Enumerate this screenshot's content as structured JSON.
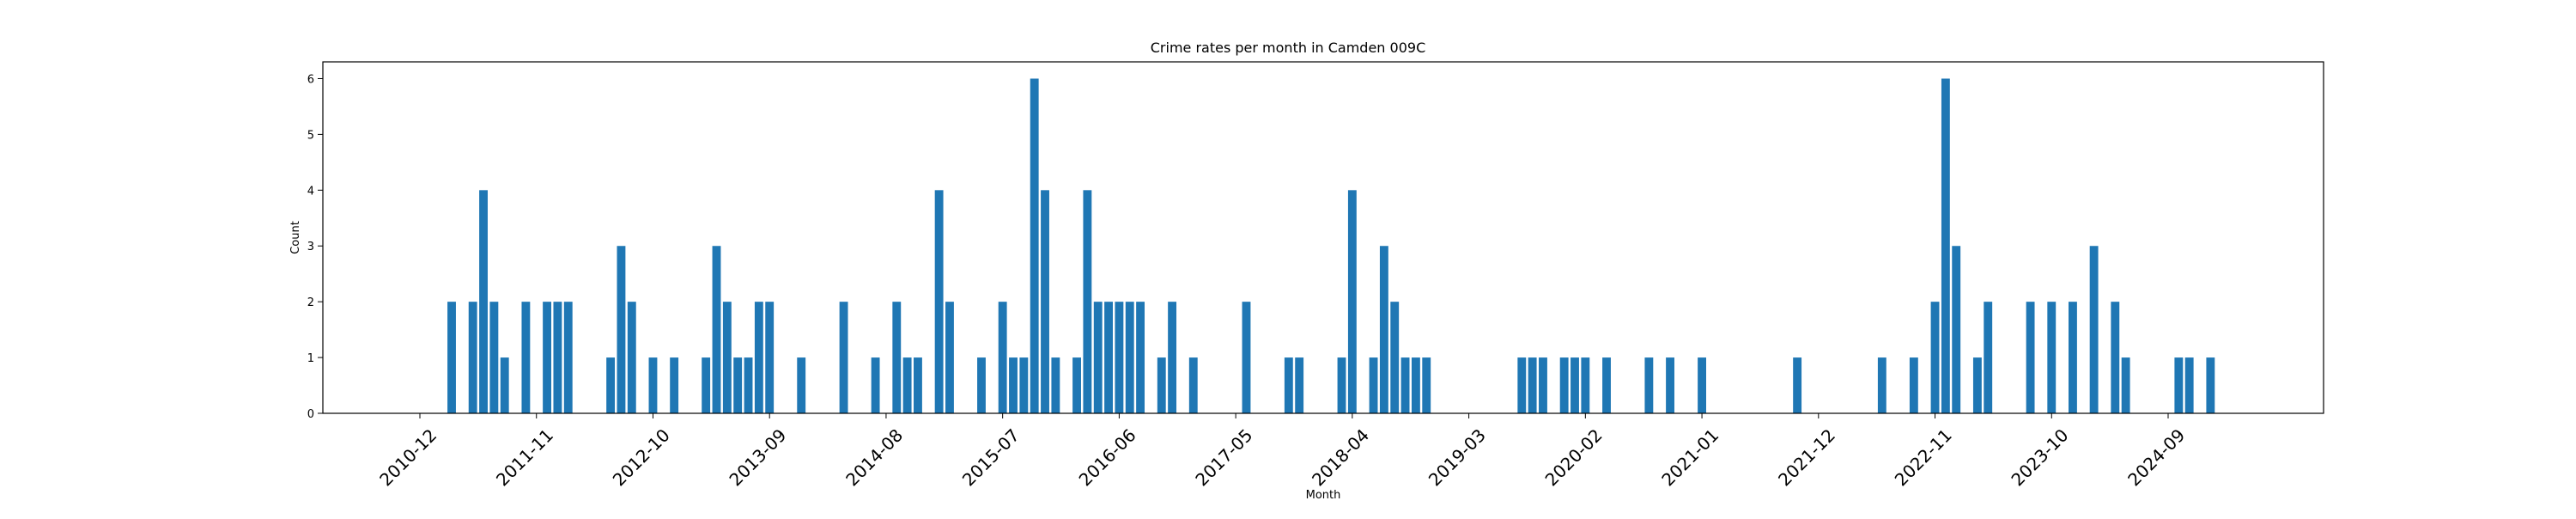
{
  "chart_data": {
    "type": "bar",
    "title": "Crime rates per month in Camden 009C",
    "xlabel": "Month",
    "ylabel": "Count",
    "ylim": [
      0,
      6.3
    ],
    "yticks": [
      0,
      1,
      2,
      3,
      4,
      5,
      6
    ],
    "xticks": [
      "2010-12",
      "2011-11",
      "2012-10",
      "2013-09",
      "2014-08",
      "2015-07",
      "2016-06",
      "2017-05",
      "2018-04",
      "2019-03",
      "2020-02",
      "2021-01",
      "2021-12",
      "2022-11",
      "2023-10",
      "2024-09"
    ],
    "bar_color": "#1f77b4",
    "grid": false,
    "categories": [
      "2011-03",
      "2011-05",
      "2011-06",
      "2011-07",
      "2011-08",
      "2011-10",
      "2011-12",
      "2012-01",
      "2012-02",
      "2012-06",
      "2012-07",
      "2012-08",
      "2012-10",
      "2012-12",
      "2013-03",
      "2013-04",
      "2013-05",
      "2013-06",
      "2013-07",
      "2013-08",
      "2013-09",
      "2013-12",
      "2014-04",
      "2014-07",
      "2014-09",
      "2014-10",
      "2014-11",
      "2015-01",
      "2015-02",
      "2015-05",
      "2015-07",
      "2015-08",
      "2015-09",
      "2015-10",
      "2015-11",
      "2015-12",
      "2016-02",
      "2016-03",
      "2016-04",
      "2016-05",
      "2016-06",
      "2016-07",
      "2016-08",
      "2016-10",
      "2016-11",
      "2017-01",
      "2017-06",
      "2017-10",
      "2017-11",
      "2018-03",
      "2018-04",
      "2018-06",
      "2018-07",
      "2018-08",
      "2018-09",
      "2018-10",
      "2018-11",
      "2019-08",
      "2019-09",
      "2019-10",
      "2019-12",
      "2020-01",
      "2020-02",
      "2020-04",
      "2020-08",
      "2020-10",
      "2021-01",
      "2021-10",
      "2022-06",
      "2022-09",
      "2022-11",
      "2022-12",
      "2023-01",
      "2023-03",
      "2023-04",
      "2023-08",
      "2023-10",
      "2023-12",
      "2024-02",
      "2024-04",
      "2024-05",
      "2024-10",
      "2024-11",
      "2025-01"
    ],
    "values": [
      2,
      2,
      4,
      2,
      1,
      2,
      2,
      2,
      2,
      1,
      3,
      2,
      1,
      1,
      1,
      3,
      2,
      1,
      1,
      2,
      2,
      1,
      2,
      1,
      2,
      1,
      1,
      4,
      2,
      1,
      2,
      1,
      1,
      6,
      4,
      1,
      1,
      4,
      2,
      2,
      2,
      2,
      2,
      1,
      2,
      1,
      2,
      1,
      1,
      1,
      4,
      1,
      3,
      2,
      1,
      1,
      1,
      1,
      1,
      1,
      1,
      1,
      1,
      1,
      1,
      1,
      1,
      1,
      1,
      1,
      2,
      6,
      3,
      1,
      2,
      2,
      2,
      2,
      3,
      2,
      1,
      1,
      1,
      1
    ]
  }
}
